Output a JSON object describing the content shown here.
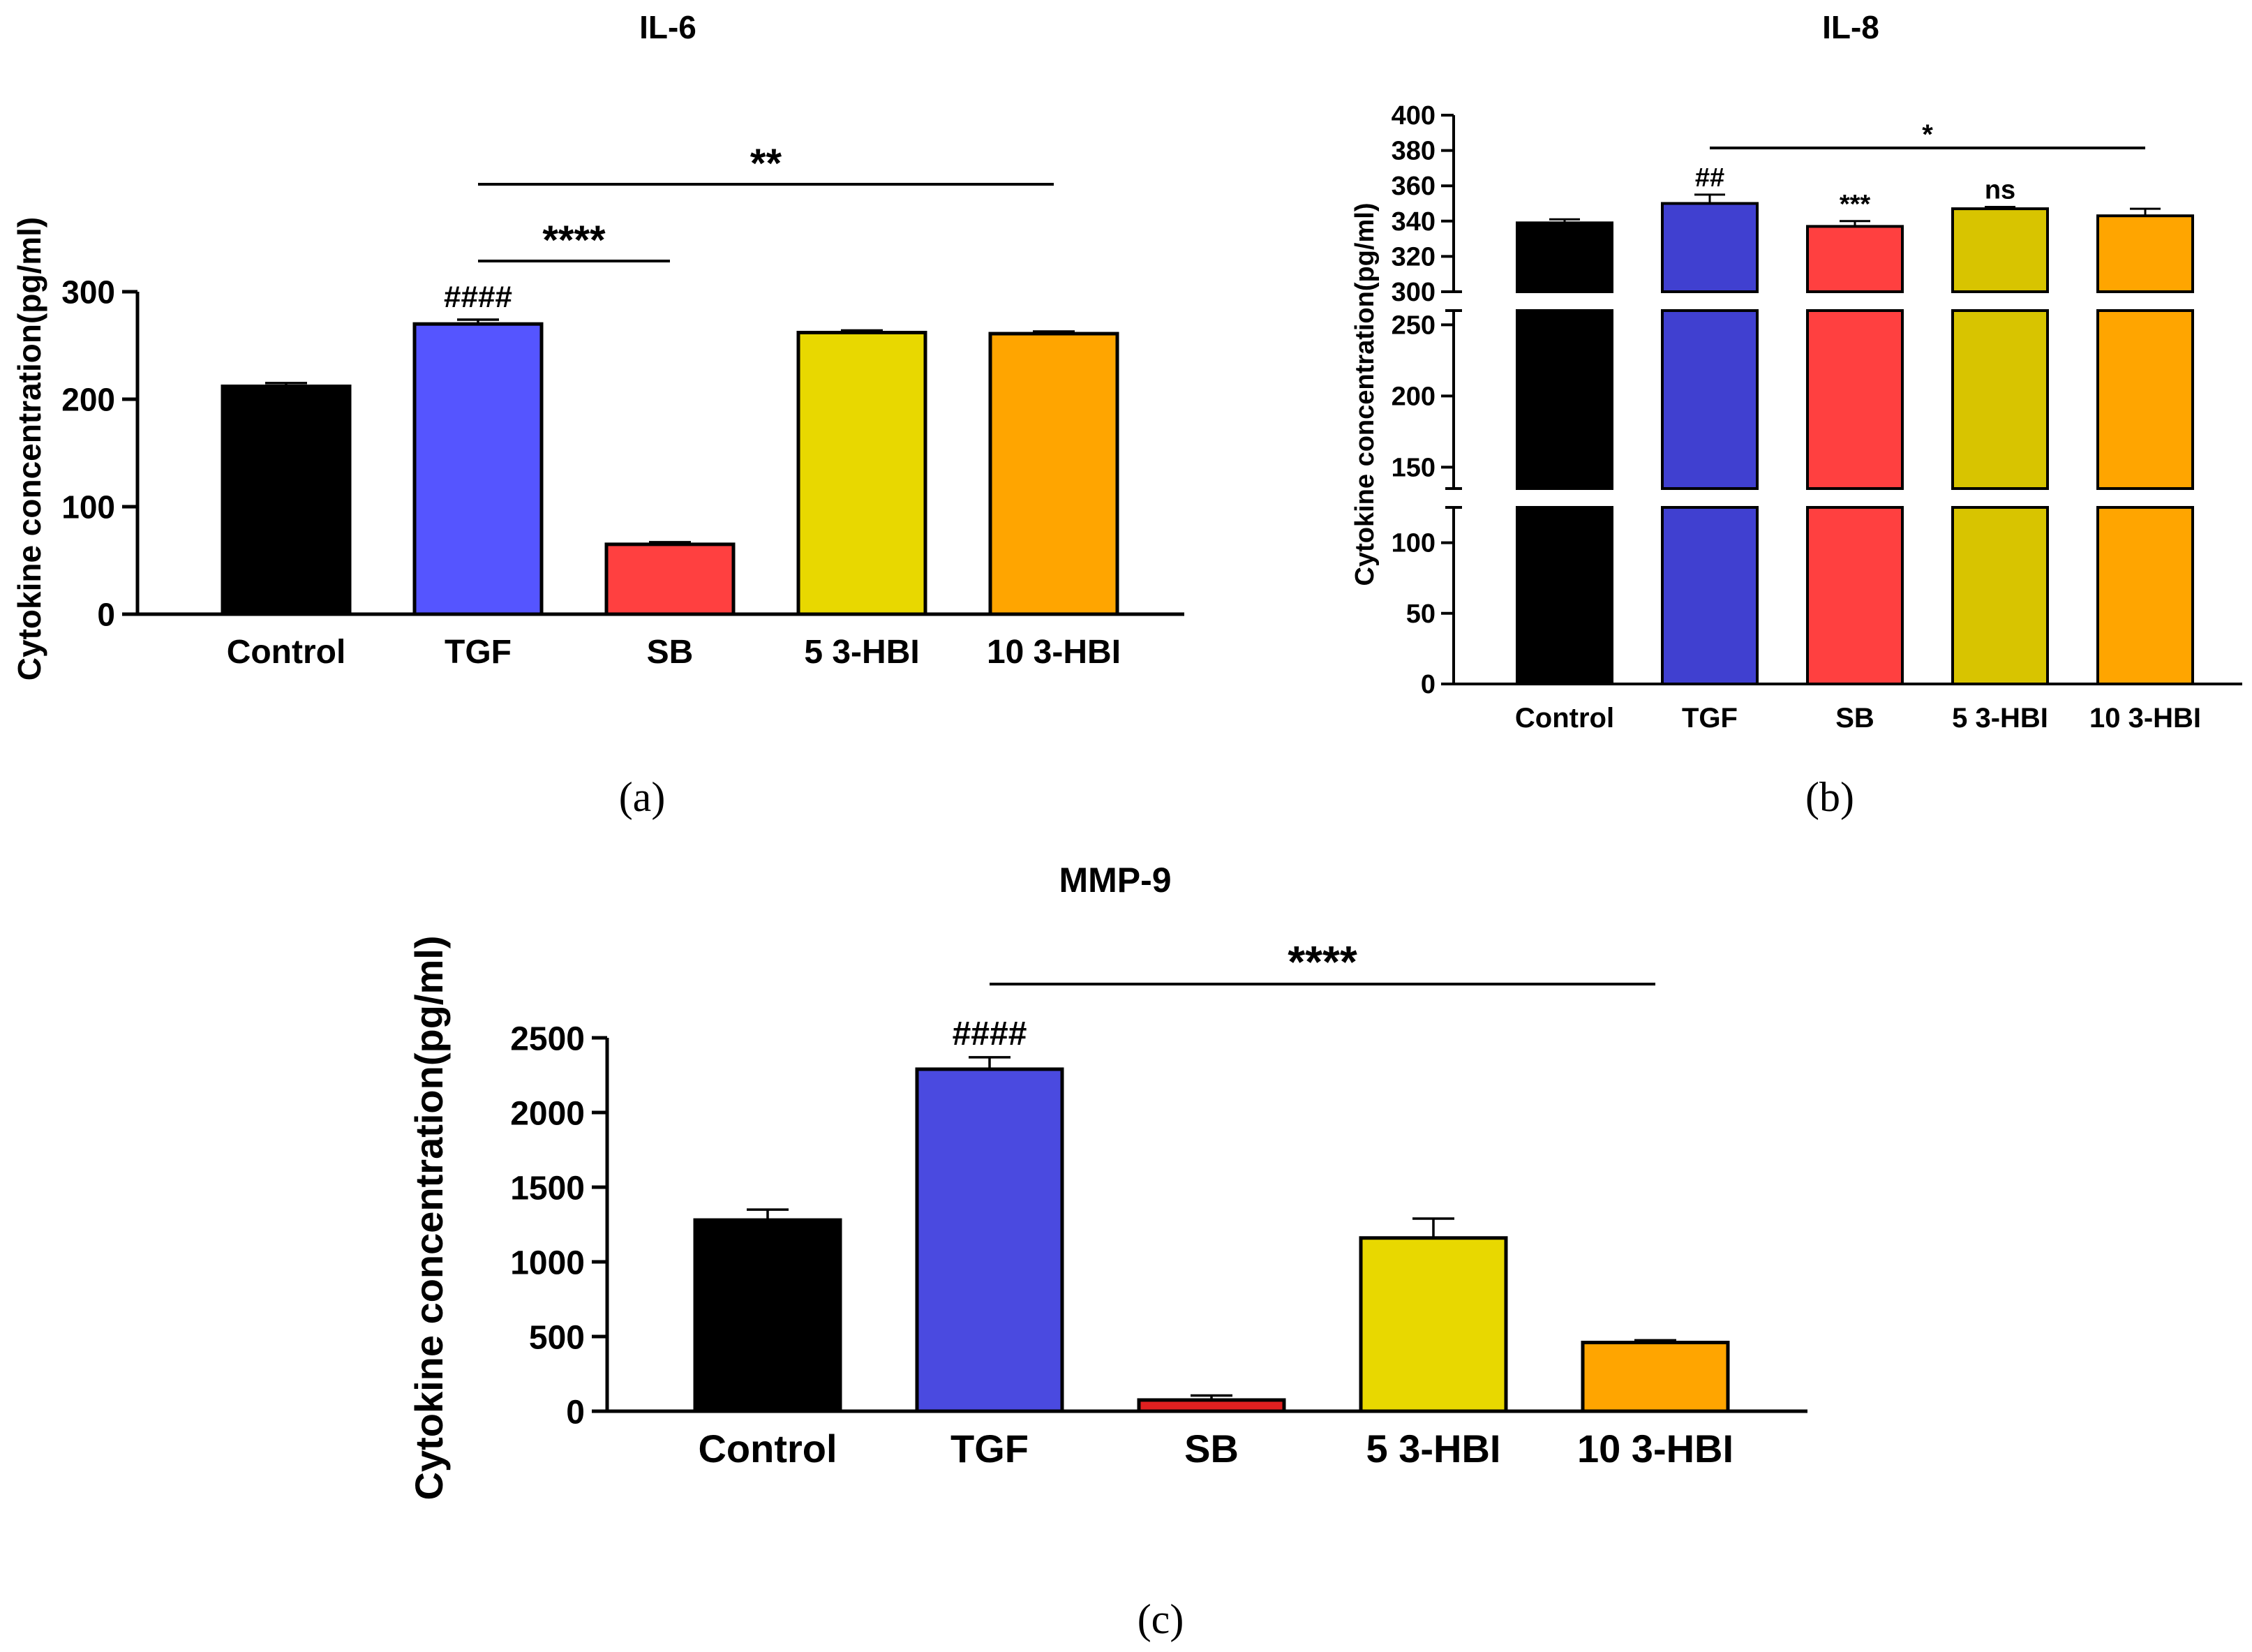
{
  "chart_data": [
    {
      "type": "bar",
      "panel_label": "(a)",
      "title": "IL-6",
      "ylabel": "Cytokine concentration(pg/ml)",
      "categories": [
        "Control",
        "TGF",
        "SB",
        "5 3-HBI",
        "10 3-HBI"
      ],
      "values": [
        212,
        270,
        65,
        262,
        261
      ],
      "errors": [
        3,
        4,
        2,
        2,
        2
      ],
      "colors": [
        "#000000",
        "#5555ff",
        "#ff4040",
        "#e8d800",
        "#ffa500"
      ],
      "ylim": [
        0,
        300
      ],
      "yticks": [
        "0",
        "100",
        "200",
        "300"
      ],
      "annotations": [
        {
          "text": "####",
          "category": "TGF"
        },
        {
          "text": "****",
          "from": "TGF",
          "to": "SB"
        },
        {
          "text": "**",
          "from": "TGF",
          "to": "10 3-HBI"
        }
      ]
    },
    {
      "type": "bar",
      "panel_label": "(b)",
      "title": "IL-8",
      "ylabel": "Cytokine concentration(pg/ml)",
      "categories": [
        "Control",
        "TGF",
        "SB",
        "5 3-HBI",
        "10 3-HBI"
      ],
      "values": [
        339,
        350,
        337,
        347,
        343
      ],
      "errors": [
        2,
        5,
        3,
        1,
        4
      ],
      "colors": [
        "#000000",
        "#4040d0",
        "#ff4040",
        "#d8c400",
        "#ffa500"
      ],
      "axis_breaks": [
        [
          0,
          125
        ],
        [
          135,
          260
        ],
        [
          300,
          400
        ]
      ],
      "ytick_groups": [
        [
          "0",
          "50",
          "100"
        ],
        [
          "150",
          "200",
          "250"
        ],
        [
          "300",
          "320",
          "340",
          "360",
          "380",
          "400"
        ]
      ],
      "annotations": [
        {
          "text": "##",
          "category": "TGF"
        },
        {
          "text": "***",
          "category": "SB"
        },
        {
          "text": "ns",
          "category": "5 3-HBI"
        },
        {
          "text": "*",
          "from": "TGF",
          "to": "10 3-HBI"
        }
      ]
    },
    {
      "type": "bar",
      "panel_label": "(c)",
      "title": "MMP-9",
      "ylabel": "Cytokine concentration(pg/ml)",
      "categories": [
        "Control",
        "TGF",
        "SB",
        "5 3-HBI",
        "10 3-HBI"
      ],
      "values": [
        1280,
        2290,
        75,
        1160,
        460
      ],
      "errors": [
        70,
        80,
        30,
        130,
        15
      ],
      "colors": [
        "#000000",
        "#4a4ae0",
        "#e02020",
        "#e8d800",
        "#ffa500"
      ],
      "ylim": [
        0,
        2500
      ],
      "yticks": [
        "0",
        "500",
        "1000",
        "1500",
        "2000",
        "2500"
      ],
      "annotations": [
        {
          "text": "####",
          "category": "TGF"
        },
        {
          "text": "****",
          "from": "TGF",
          "to": "10 3-HBI"
        }
      ]
    }
  ]
}
